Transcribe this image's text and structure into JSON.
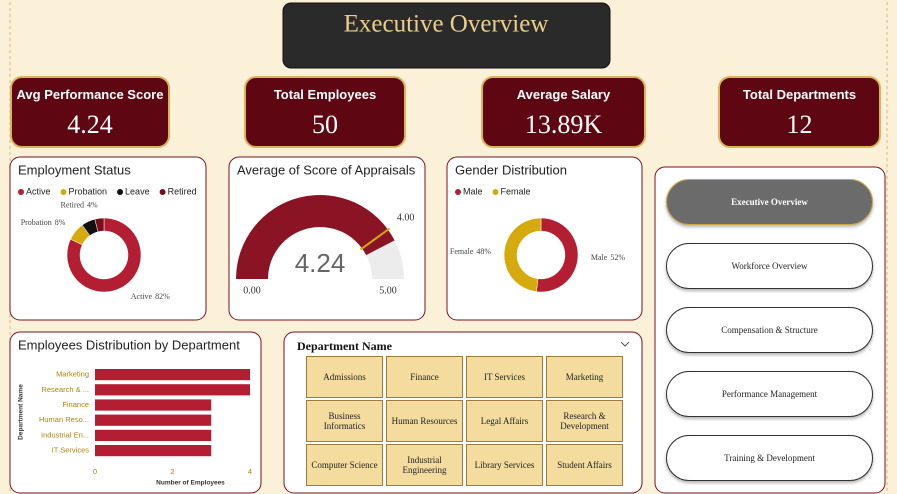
{
  "header": {
    "title": "Executive Overview"
  },
  "kpis": [
    {
      "title": "Avg Performance Score",
      "value": "4.24"
    },
    {
      "title": "Total Employees",
      "value": "50"
    },
    {
      "title": "Average Salary",
      "value": "13.89K"
    },
    {
      "title": "Total Departments",
      "value": "12"
    }
  ],
  "chart_data": [
    {
      "type": "pie",
      "title": "Employment Status",
      "categories": [
        "Active",
        "Probation",
        "Leave",
        "Retired"
      ],
      "values": [
        82,
        8,
        6,
        4
      ],
      "value_labels": [
        "82%",
        "8%",
        null,
        "4%"
      ],
      "colors": [
        "#b41e32",
        "#d6aa0c",
        "#111111",
        "#7a0a1c"
      ]
    },
    {
      "type": "gauge",
      "title": "Average of Score of Appraisals",
      "value": 4.24,
      "ylim": [
        0,
        5
      ],
      "yticks": [
        {
          "value": 0,
          "label": "0.00"
        },
        {
          "value": 5,
          "label": "5.00"
        }
      ],
      "target": {
        "value": 4,
        "label": "4.00"
      },
      "color": "#8a1424",
      "target_color": "#d6aa0c"
    },
    {
      "type": "pie",
      "title": "Gender Distribution",
      "categories": [
        "Male",
        "Female"
      ],
      "values": [
        52,
        48
      ],
      "value_labels": [
        "52%",
        "48%"
      ],
      "colors": [
        "#b41e32",
        "#d6aa0c"
      ]
    },
    {
      "type": "hbar",
      "title": "Employees Distribution by Department",
      "categories": [
        "Marketing",
        "Research & ...",
        "Finance",
        "Human Reso...",
        "Industrial En...",
        "IT Services"
      ],
      "values": [
        4,
        4,
        3,
        3,
        3,
        3
      ],
      "xlim": [
        0,
        4
      ],
      "xticks": [
        0,
        2,
        4
      ],
      "color": "#b41e32",
      "x_label": "Number of Employees",
      "y_label": "Department Name"
    }
  ],
  "slicer": {
    "title": "Department Name",
    "items": [
      "Admissions",
      "Finance",
      "IT Services",
      "Marketing",
      "Business Informatics",
      "Human Resources",
      "Legal Affairs",
      "Research & Development",
      "Computer Science",
      "Industrial Engineering",
      "Library Services",
      "Student Affairs"
    ]
  },
  "nav": [
    "Executive Overview",
    "Workforce Overview",
    "Compensation & Structure",
    "Performance Management",
    "Training & Development"
  ]
}
